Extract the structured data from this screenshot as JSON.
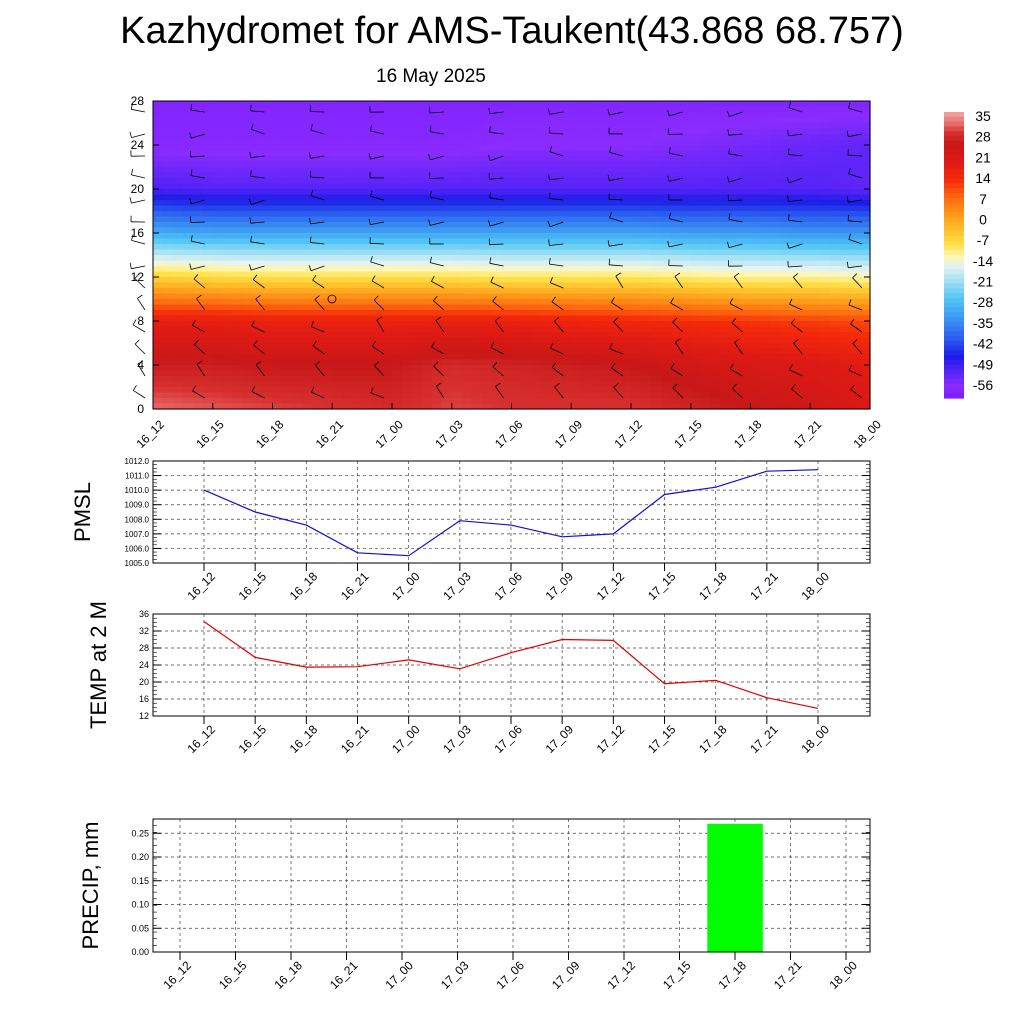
{
  "title": "Kazhydromet for AMS-Taukent(43.868 68.757)",
  "date": "16 May 2025",
  "colors": {
    "pmsl_line": "#1010d0",
    "temp_line": "#e00000",
    "precip_bar": "#00ff00"
  },
  "chart_data": [
    {
      "type": "heatmap",
      "title": "",
      "xlabel": "",
      "ylabel": "",
      "x": [
        "16_12",
        "16_15",
        "16_18",
        "16_21",
        "17_00",
        "17_03",
        "17_06",
        "17_09",
        "17_12",
        "17_15",
        "17_18",
        "17_21",
        "18_00"
      ],
      "y_ticks": [
        0,
        4,
        8,
        12,
        16,
        20,
        24,
        28
      ],
      "ylim": [
        0,
        28
      ],
      "colorbar": {
        "ticks": [
          "35",
          "28",
          "21",
          "14",
          "7",
          "0",
          "-7",
          "-14",
          "-21",
          "-28",
          "-35",
          "-42",
          "-49",
          "-56"
        ],
        "range": [
          -60,
          37
        ]
      },
      "overlay": "wind-barbs",
      "description_levels_temperature_c": [
        {
          "level": 0,
          "values": [
            33,
            32,
            31,
            30,
            29,
            31,
            30,
            30,
            30,
            28,
            26,
            24,
            22
          ]
        },
        {
          "level": 4,
          "values": [
            27,
            27,
            26,
            26,
            26,
            29,
            28,
            27,
            26,
            24,
            22,
            21,
            19
          ]
        },
        {
          "level": 8,
          "values": [
            18,
            18,
            17,
            17,
            17,
            17,
            17,
            16,
            15,
            14,
            13,
            12,
            11
          ]
        },
        {
          "level": 12,
          "values": [
            -6,
            -7,
            -8,
            -8,
            -8,
            -8,
            -9,
            -9,
            -9,
            -10,
            -11,
            -11,
            -12
          ]
        },
        {
          "level": 16,
          "values": [
            -30,
            -31,
            -31,
            -31,
            -31,
            -31,
            -31,
            -31,
            -31,
            -32,
            -32,
            -33,
            -33
          ]
        },
        {
          "level": 20,
          "values": [
            -50,
            -51,
            -51,
            -51,
            -51,
            -51,
            -51,
            -51,
            -51,
            -51,
            -51,
            -51,
            -52
          ]
        },
        {
          "level": 24,
          "values": [
            -57,
            -57,
            -57,
            -57,
            -57,
            -57,
            -56,
            -56,
            -56,
            -55,
            -54,
            -53,
            -52
          ]
        },
        {
          "level": 28,
          "values": [
            -58,
            -58,
            -58,
            -58,
            -58,
            -58,
            -58,
            -58,
            -58,
            -58,
            -58,
            -58,
            -58
          ]
        }
      ]
    },
    {
      "type": "line",
      "ylabel": "PMSL",
      "x": [
        "16_12",
        "16_15",
        "16_18",
        "16_21",
        "17_00",
        "17_03",
        "17_06",
        "17_09",
        "17_12",
        "17_15",
        "17_18",
        "17_21",
        "18_00"
      ],
      "series": [
        {
          "values": [
            1010.0,
            1008.5,
            1007.6,
            1005.7,
            1005.5,
            1007.9,
            1007.6,
            1006.8,
            1007.0,
            1009.7,
            1010.2,
            1011.3,
            1011.4
          ]
        }
      ],
      "ylim": [
        1005.0,
        1012.0
      ],
      "y_ticks": [
        "1005.0",
        "1006.0",
        "1007.0",
        "1008.0",
        "1009.0",
        "1010.0",
        "1011.0",
        "1012.0"
      ]
    },
    {
      "type": "line",
      "ylabel": "TEMP at 2 M",
      "x": [
        "16_12",
        "16_15",
        "16_18",
        "16_21",
        "17_00",
        "17_03",
        "17_06",
        "17_09",
        "17_12",
        "17_15",
        "17_18",
        "17_21",
        "18_00"
      ],
      "series": [
        {
          "values": [
            34.2,
            25.8,
            23.5,
            23.6,
            25.2,
            23.1,
            26.9,
            30.0,
            29.8,
            19.6,
            20.4,
            16.3,
            13.8
          ]
        }
      ],
      "ylim": [
        12,
        36
      ],
      "y_ticks": [
        "12",
        "16",
        "20",
        "24",
        "28",
        "32",
        "36"
      ]
    },
    {
      "type": "bar",
      "ylabel": "PRECIP, mm",
      "categories": [
        "16_12",
        "16_15",
        "16_18",
        "16_21",
        "17_00",
        "17_03",
        "17_06",
        "17_09",
        "17_12",
        "17_15",
        "17_18",
        "17_21",
        "18_00"
      ],
      "values": [
        0,
        0,
        0,
        0,
        0,
        0,
        0,
        0,
        0,
        0,
        0.27,
        0,
        0
      ],
      "ylim": [
        0,
        0.28
      ],
      "y_ticks": [
        "0.00",
        "0.05",
        "0.10",
        "0.15",
        "0.20",
        "0.25"
      ]
    }
  ]
}
